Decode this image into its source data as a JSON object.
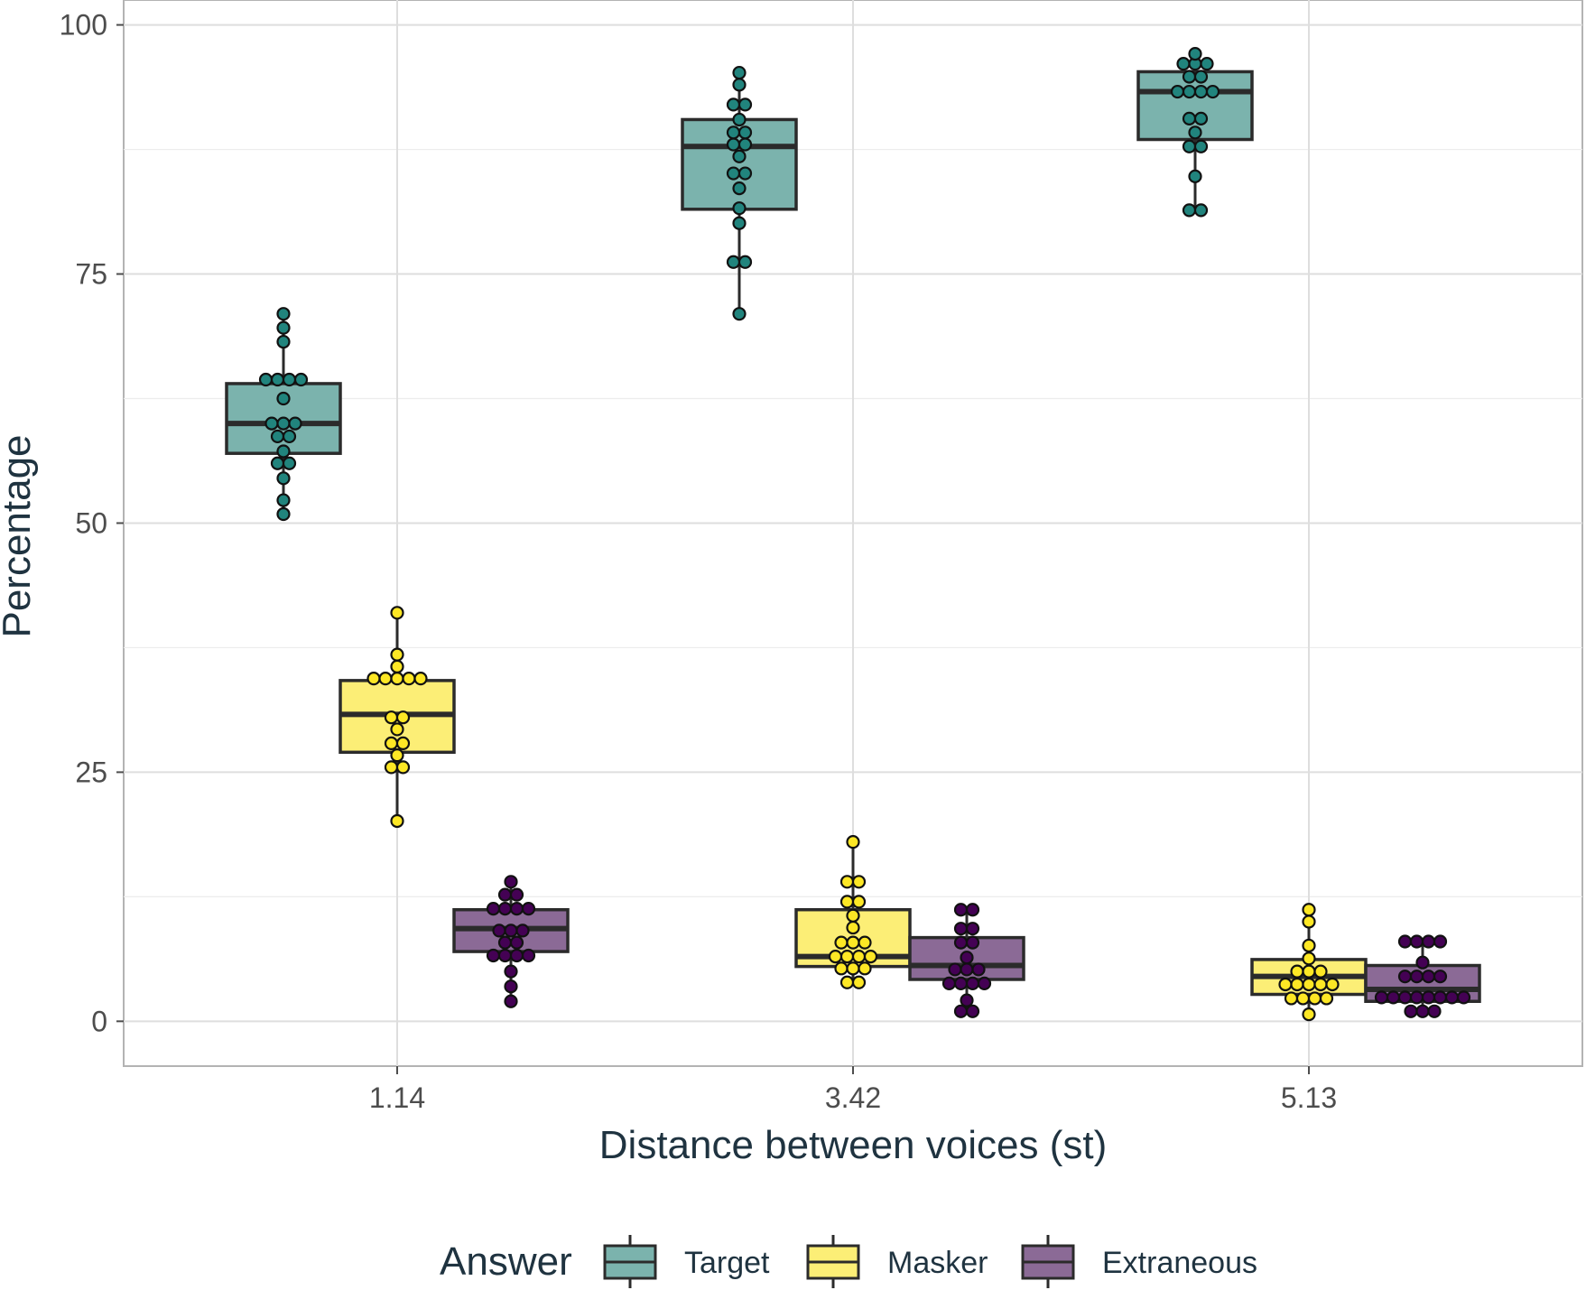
{
  "chart_data": {
    "type": "boxplot",
    "title": "",
    "xlabel": "Distance between voices (st)",
    "ylabel": "Percentage",
    "categories": [
      "1.14",
      "3.42",
      "5.13"
    ],
    "yticks": [
      0,
      25,
      50,
      75,
      100
    ],
    "ylim": [
      -4.5,
      102.5
    ],
    "grid": true,
    "legend": {
      "title": "Answer",
      "position": "bottom",
      "entries": [
        "Target",
        "Masker",
        "Extraneous"
      ]
    },
    "series": [
      {
        "name": "Target",
        "fill": "#7bb3ad",
        "point_fill": "#21847d",
        "boxes": [
          {
            "category": "1.14",
            "q1": 57,
            "median": 60,
            "q3": 64,
            "whisker_low": 51,
            "whisker_high": 71,
            "points": [
              50.9,
              52.3,
              54.5,
              56,
              56,
              57.2,
              58.7,
              58.7,
              60,
              60,
              60,
              62.5,
              64.4,
              64.4,
              64.4,
              64.4,
              68.2,
              69.6,
              71
            ]
          },
          {
            "category": "3.42",
            "q1": 81.5,
            "median": 87.8,
            "q3": 90.5,
            "whisker_low": 71,
            "whisker_high": 95,
            "points": [
              71,
              76.2,
              76.2,
              80.1,
              81.6,
              83.6,
              85.1,
              85.1,
              86.8,
              88,
              88,
              89.2,
              89.2,
              90.5,
              92,
              92,
              94,
              95.2
            ]
          },
          {
            "category": "5.13",
            "q1": 88.5,
            "median": 93.3,
            "q3": 95.3,
            "whisker_low": 81.5,
            "whisker_high": 97,
            "points": [
              81.4,
              81.4,
              84.8,
              87.8,
              87.8,
              89.2,
              90.6,
              90.6,
              93.3,
              93.3,
              93.3,
              93.3,
              94.8,
              94.8,
              96.1,
              96.1,
              96.1,
              97.1
            ]
          }
        ]
      },
      {
        "name": "Masker",
        "fill": "#fcee76",
        "point_fill": "#fde725",
        "boxes": [
          {
            "category": "1.14",
            "q1": 27,
            "median": 30.8,
            "q3": 34.2,
            "whisker_low": 20,
            "whisker_high": 41,
            "points": [
              20.1,
              25.5,
              25.5,
              26.7,
              27.9,
              27.9,
              29.3,
              30.5,
              30.5,
              34.4,
              34.4,
              34.4,
              34.4,
              34.4,
              35.6,
              36.8,
              41
            ]
          },
          {
            "category": "3.42",
            "q1": 5.5,
            "median": 6.5,
            "q3": 11.2,
            "whisker_low": 3.8,
            "whisker_high": 18,
            "points": [
              3.9,
              3.9,
              5.3,
              5.3,
              5.3,
              6.5,
              6.5,
              6.5,
              6.5,
              7.9,
              7.9,
              7.9,
              9.4,
              10.6,
              12,
              12,
              14,
              14,
              18
            ]
          },
          {
            "category": "5.13",
            "q1": 2.7,
            "median": 4.5,
            "q3": 6.2,
            "whisker_low": 0.7,
            "whisker_high": 11.2,
            "points": [
              0.7,
              2.3,
              2.3,
              2.3,
              2.3,
              3.7,
              3.7,
              3.7,
              3.7,
              3.7,
              5,
              5,
              5,
              6.3,
              7.6,
              10,
              11.2
            ]
          }
        ]
      },
      {
        "name": "Extraneous",
        "fill": "#8b6a96",
        "point_fill": "#440154",
        "boxes": [
          {
            "category": "1.14",
            "q1": 7,
            "median": 9.3,
            "q3": 11.2,
            "whisker_low": 2,
            "whisker_high": 14,
            "points": [
              2,
              3.5,
              5,
              6.6,
              6.6,
              6.6,
              6.6,
              7.9,
              7.9,
              9.1,
              9.1,
              9.1,
              11.3,
              11.3,
              11.3,
              11.3,
              12.7,
              12.7,
              14
            ]
          },
          {
            "category": "3.42",
            "q1": 4.2,
            "median": 5.6,
            "q3": 8.4,
            "whisker_low": 1,
            "whisker_high": 11.2,
            "points": [
              1,
              1,
              2.1,
              3.8,
              3.8,
              3.8,
              3.8,
              5.2,
              5.2,
              5.2,
              6.4,
              7.9,
              7.9,
              9.3,
              9.3,
              11.2,
              11.2
            ]
          },
          {
            "category": "5.13",
            "q1": 2,
            "median": 3.2,
            "q3": 5.6,
            "whisker_low": 1,
            "whisker_high": 8,
            "points": [
              1,
              1,
              1,
              2.4,
              2.4,
              2.4,
              2.4,
              2.4,
              2.4,
              2.4,
              2.4,
              4.5,
              4.5,
              4.5,
              4.5,
              5.9,
              8,
              8,
              8,
              8
            ]
          }
        ]
      }
    ]
  }
}
